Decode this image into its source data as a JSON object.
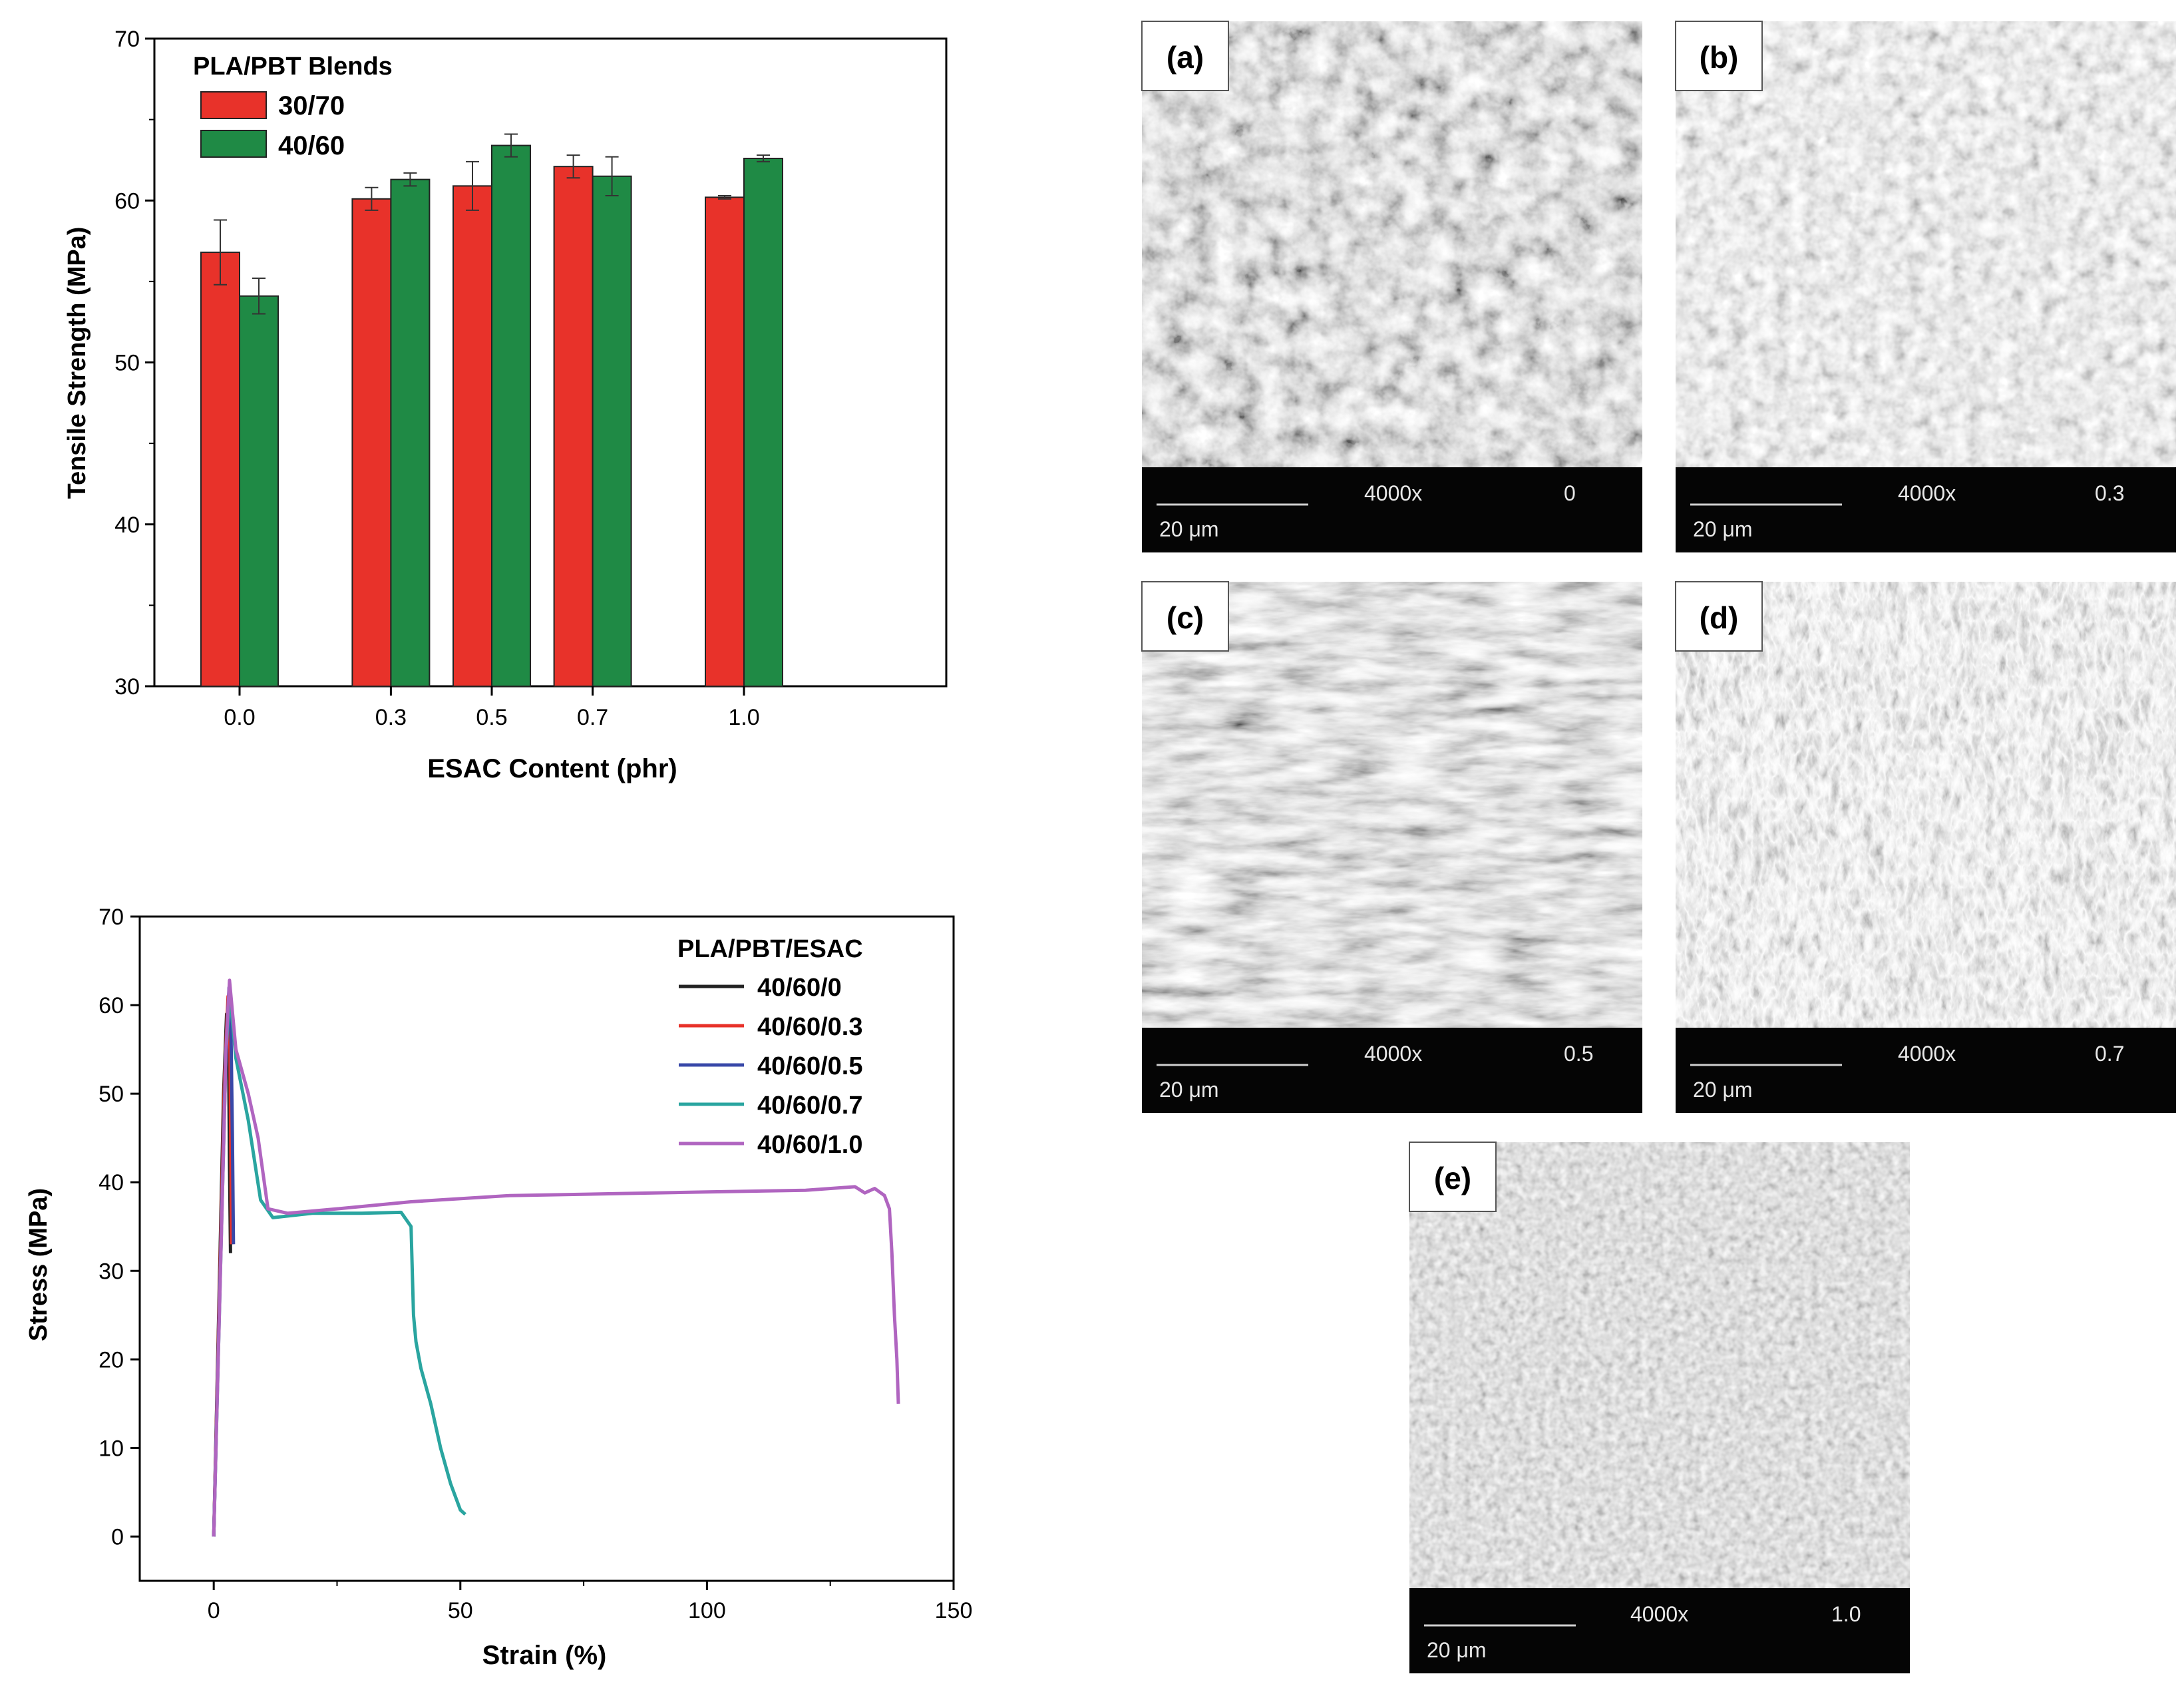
{
  "chart_data": [
    {
      "type": "bar",
      "ylabel": "Tensile Strength (MPa)",
      "xlabel": "ESAC Content (phr)",
      "ylim": [
        30,
        70
      ],
      "yticks": [
        30,
        40,
        50,
        60,
        70
      ],
      "legend_title": "PLA/PBT Blends",
      "legend_position": "top-left",
      "categories": [
        "0.0",
        "0.3",
        "0.5",
        "0.7",
        "1.0"
      ],
      "category_values": [
        0.0,
        0.3,
        0.5,
        0.7,
        1.0
      ],
      "series": [
        {
          "name": "30/70",
          "color": "#e8322a",
          "values": [
            56.8,
            60.1,
            60.9,
            62.1,
            60.2
          ],
          "errors": [
            2.0,
            0.7,
            1.5,
            0.7,
            0.1
          ]
        },
        {
          "name": "40/60",
          "color": "#1f8a45",
          "values": [
            54.1,
            61.3,
            63.4,
            61.5,
            62.6
          ],
          "errors": [
            1.1,
            0.4,
            0.7,
            1.2,
            0.2
          ]
        }
      ]
    },
    {
      "type": "line",
      "ylabel": "Stress (MPa)",
      "xlabel": "Strain (%)",
      "xlim": [
        -15,
        150
      ],
      "ylim": [
        -5,
        70
      ],
      "xticks": [
        0,
        50,
        100,
        150
      ],
      "xtick_labels": [
        "0",
        "50",
        "100",
        "150"
      ],
      "yticks": [
        0,
        10,
        20,
        30,
        40,
        50,
        60,
        70
      ],
      "legend_title": "PLA/PBT/ESAC",
      "legend_position": "top-right",
      "series": [
        {
          "name": "40/60/0",
          "color": "#222222",
          "x": [
            0,
            1.2,
            2.0,
            2.6,
            3.0,
            3.2,
            3.4
          ],
          "y": [
            0,
            30,
            50,
            59,
            56,
            42,
            32
          ]
        },
        {
          "name": "40/60/0.3",
          "color": "#e8322a",
          "x": [
            0,
            1.3,
            2.2,
            2.9,
            3.3,
            3.6
          ],
          "y": [
            0,
            31,
            52,
            61,
            55,
            33
          ]
        },
        {
          "name": "40/60/0.5",
          "color": "#3848a8",
          "x": [
            0,
            1.4,
            2.4,
            3.1,
            3.5,
            3.8,
            4.0
          ],
          "y": [
            0,
            32,
            54,
            62,
            57,
            45,
            33
          ]
        },
        {
          "name": "40/60/0.7",
          "color": "#2aa5a0",
          "x": [
            0,
            1.5,
            2.5,
            3.3,
            4.5,
            7.0,
            9.5,
            12,
            20,
            30,
            38,
            40,
            40.5,
            41,
            42,
            44,
            46,
            48,
            50,
            51
          ],
          "y": [
            0,
            33,
            55,
            61,
            54,
            47,
            38,
            36,
            36.5,
            36.5,
            36.6,
            35,
            25,
            22,
            19,
            15,
            10,
            6,
            3,
            2.5
          ]
        },
        {
          "name": "40/60/1.0",
          "color": "#b065c0",
          "x": [
            0,
            1.5,
            2.5,
            3.2,
            4.5,
            7.0,
            9.0,
            11,
            15,
            25,
            40,
            60,
            80,
            100,
            120,
            130,
            132,
            134,
            136,
            137,
            137.5,
            138,
            138.5,
            138.8
          ],
          "y": [
            0,
            33,
            55,
            62.8,
            55,
            50,
            45,
            37,
            36.5,
            37,
            37.8,
            38.5,
            38.7,
            38.9,
            39.1,
            39.5,
            38.8,
            39.3,
            38.5,
            37,
            32,
            25,
            20,
            15
          ]
        }
      ]
    }
  ],
  "micrographs": [
    {
      "label": "(a)",
      "magnification": "4000x",
      "content": "0",
      "scale": "20 μm"
    },
    {
      "label": "(b)",
      "magnification": "4000x",
      "content": "0.3",
      "scale": "20 μm"
    },
    {
      "label": "(c)",
      "magnification": "4000x",
      "content": "0.5",
      "scale": "20 μm"
    },
    {
      "label": "(d)",
      "magnification": "4000x",
      "content": "0.7",
      "scale": "20 μm"
    },
    {
      "label": "(e)",
      "magnification": "4000x",
      "content": "1.0",
      "scale": "20 μm"
    }
  ]
}
